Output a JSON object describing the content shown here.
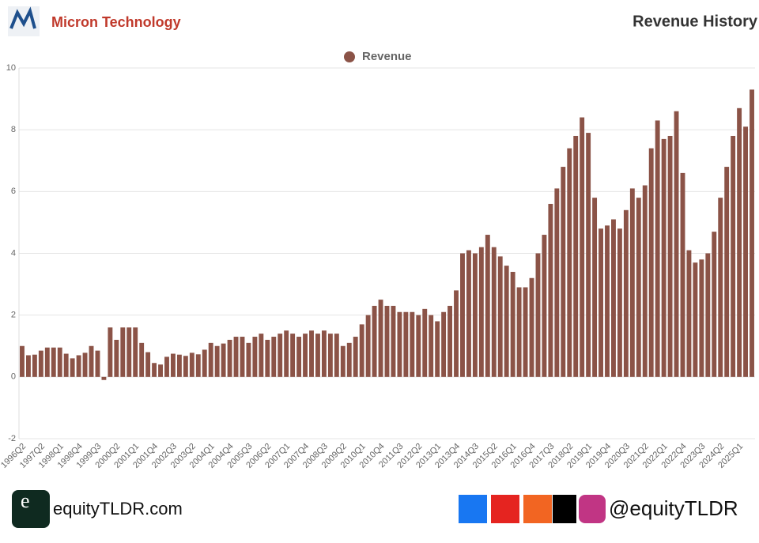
{
  "chart_data": {
    "type": "bar",
    "company": "Micron Technology",
    "title": "Revenue History",
    "legend": "Revenue",
    "color": "#8b5347",
    "grid": true,
    "ylim": [
      -2,
      10
    ],
    "yticks": [
      -2,
      0,
      2,
      4,
      6,
      8,
      10
    ],
    "categories": [
      "1996Q2",
      null,
      null,
      "1997Q2",
      null,
      null,
      "1998Q1",
      null,
      null,
      "1998Q4",
      null,
      null,
      "1999Q3",
      null,
      null,
      "2000Q2",
      null,
      null,
      "2001Q1",
      null,
      null,
      "2001Q4",
      null,
      null,
      "2002Q3",
      null,
      null,
      "2003Q2",
      null,
      null,
      "2004Q1",
      null,
      null,
      "2004Q4",
      null,
      null,
      "2005Q3",
      null,
      null,
      "2006Q2",
      null,
      null,
      "2007Q1",
      null,
      null,
      "2007Q4",
      null,
      null,
      "2008Q3",
      null,
      null,
      "2009Q2",
      null,
      null,
      "2010Q1",
      null,
      null,
      "2010Q4",
      null,
      null,
      "2011Q3",
      null,
      null,
      "2012Q2",
      null,
      null,
      "2013Q1",
      null,
      null,
      "2013Q4",
      null,
      null,
      "2014Q3",
      null,
      null,
      "2015Q2",
      null,
      null,
      "2016Q1",
      null,
      null,
      "2016Q4",
      null,
      null,
      "2017Q3",
      null,
      null,
      "2018Q2",
      null,
      null,
      "2019Q1",
      null,
      null,
      "2019Q4",
      null,
      null,
      "2020Q3",
      null,
      null,
      "2021Q2",
      null,
      null,
      "2022Q1",
      null,
      null,
      "2022Q4",
      null,
      null,
      "2023Q3",
      null,
      null,
      "2024Q2",
      null,
      null,
      "2025Q1",
      null,
      null
    ],
    "values": [
      1.0,
      0.7,
      0.72,
      0.85,
      0.95,
      0.95,
      0.95,
      0.75,
      0.6,
      0.7,
      0.78,
      1.0,
      0.85,
      -0.1,
      1.6,
      1.2,
      1.6,
      1.6,
      1.6,
      1.1,
      0.8,
      0.45,
      0.4,
      0.65,
      0.75,
      0.72,
      0.68,
      0.78,
      0.73,
      0.88,
      1.1,
      1.0,
      1.08,
      1.2,
      1.3,
      1.3,
      1.1,
      1.3,
      1.4,
      1.2,
      1.3,
      1.4,
      1.5,
      1.4,
      1.3,
      1.4,
      1.5,
      1.4,
      1.5,
      1.4,
      1.4,
      1.0,
      1.1,
      1.3,
      1.7,
      2.0,
      2.3,
      2.5,
      2.3,
      2.3,
      2.1,
      2.1,
      2.1,
      2.0,
      2.2,
      2.0,
      1.8,
      2.1,
      2.3,
      2.8,
      4.0,
      4.1,
      4.0,
      4.2,
      4.6,
      4.2,
      3.9,
      3.6,
      3.4,
      2.9,
      2.9,
      3.2,
      4.0,
      4.6,
      5.6,
      6.1,
      6.8,
      7.4,
      7.8,
      8.4,
      7.9,
      5.8,
      4.8,
      4.9,
      5.1,
      4.8,
      5.4,
      6.1,
      5.8,
      6.2,
      7.4,
      8.3,
      7.7,
      7.8,
      8.6,
      6.6,
      4.1,
      3.7,
      3.8,
      4.0,
      4.7,
      5.8,
      6.8,
      7.8,
      8.7,
      8.1,
      9.3
    ]
  },
  "footer": {
    "logo_letter": "e",
    "site": "equityTLDR.com",
    "handle": "@equityTLDR"
  }
}
